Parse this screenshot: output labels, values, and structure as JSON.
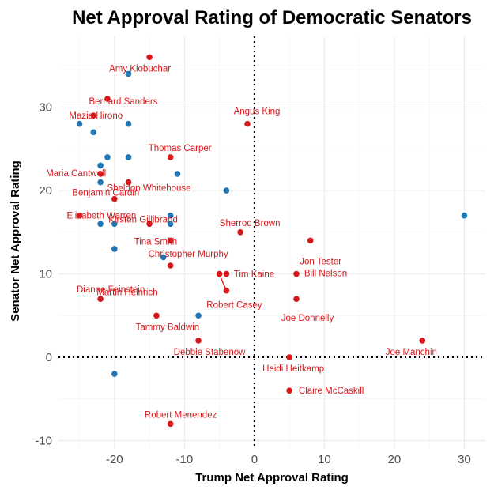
{
  "chart_data": {
    "type": "scatter",
    "title": "Net Approval Rating of Democratic Senators",
    "xlabel": "Trump Net Approval Rating",
    "ylabel": "Senator Net Approval Rating",
    "xlim": [
      -28,
      33
    ],
    "ylim": [
      -11,
      38.5
    ],
    "x_ticks": [
      -20,
      -10,
      0,
      10,
      20,
      30
    ],
    "x_tick_labels": [
      "-20",
      "-10",
      "0",
      "10",
      "20",
      "30"
    ],
    "y_ticks": [
      -10,
      0,
      10,
      20,
      30
    ],
    "y_tick_labels": [
      "-10",
      "0",
      "10",
      "20",
      "30"
    ],
    "reference_lines": {
      "x": 0,
      "y": 0
    },
    "colors": {
      "red": "#d7191c",
      "blue": "#1f78b4",
      "label": "#d7191c"
    },
    "series": [
      {
        "name": "red",
        "points": [
          {
            "x": -15,
            "y": 36,
            "label": "Amy Klobuchar"
          },
          {
            "x": -21,
            "y": 31,
            "label": "Bernard Sanders"
          },
          {
            "x": -23,
            "y": 29,
            "label": "Mazie Hirono"
          },
          {
            "x": -1,
            "y": 28,
            "label": "Angus King"
          },
          {
            "x": -12,
            "y": 24,
            "label": "Thomas Carper"
          },
          {
            "x": -18,
            "y": 21,
            "label": "Sheldon Whitehouse"
          },
          {
            "x": -22,
            "y": 22,
            "label": "Maria Cantwell"
          },
          {
            "x": -20,
            "y": 19,
            "label": "Benjamin Cardin"
          },
          {
            "x": -25,
            "y": 17,
            "label": "Elizabeth Warren"
          },
          {
            "x": -15,
            "y": 16,
            "label": "Kirsten Gillibrand"
          },
          {
            "x": -12,
            "y": 14,
            "label": "Tina Smith"
          },
          {
            "x": -2,
            "y": 15,
            "label": "Sherrod Brown"
          },
          {
            "x": 8,
            "y": 14,
            "label": "Jon Tester"
          },
          {
            "x": -12,
            "y": 11,
            "label": "Christopher Murphy"
          },
          {
            "x": -5,
            "y": 10,
            "label": "Martin Heinrich"
          },
          {
            "x": -4,
            "y": 10,
            "label": "Tim Kaine"
          },
          {
            "x": 6,
            "y": 10,
            "label": "Bill Nelson"
          },
          {
            "x": -22,
            "y": 7,
            "label": "Dianne Feinstein"
          },
          {
            "x": 6,
            "y": 7,
            "label": "Joe Donnelly"
          },
          {
            "x": -14,
            "y": 5,
            "label": "Tammy Baldwin"
          },
          {
            "x": -8,
            "y": 2,
            "label": "Debbie Stabenow"
          },
          {
            "x": 24,
            "y": 2,
            "label": "Joe Manchin"
          },
          {
            "x": 5,
            "y": 0,
            "label": "Heidi Heitkamp"
          },
          {
            "x": 5,
            "y": -4,
            "label": "Claire McCaskill"
          },
          {
            "x": -12,
            "y": -8,
            "label": "Robert Menendez"
          },
          {
            "x": -4,
            "y": 8,
            "label": "Robert Casey"
          }
        ]
      },
      {
        "name": "blue",
        "points": [
          {
            "x": -18,
            "y": 34
          },
          {
            "x": -25,
            "y": 28
          },
          {
            "x": -23,
            "y": 27
          },
          {
            "x": -18,
            "y": 28
          },
          {
            "x": -21,
            "y": 24
          },
          {
            "x": -18,
            "y": 24
          },
          {
            "x": -22,
            "y": 23
          },
          {
            "x": -11,
            "y": 22
          },
          {
            "x": -22,
            "y": 21
          },
          {
            "x": -4,
            "y": 20
          },
          {
            "x": -12,
            "y": 17
          },
          {
            "x": 30,
            "y": 17
          },
          {
            "x": -22,
            "y": 16
          },
          {
            "x": -20,
            "y": 16
          },
          {
            "x": -12,
            "y": 16
          },
          {
            "x": -20,
            "y": 13
          },
          {
            "x": -13,
            "y": 12
          },
          {
            "x": -8,
            "y": 5
          },
          {
            "x": -20,
            "y": -2
          }
        ]
      }
    ]
  }
}
